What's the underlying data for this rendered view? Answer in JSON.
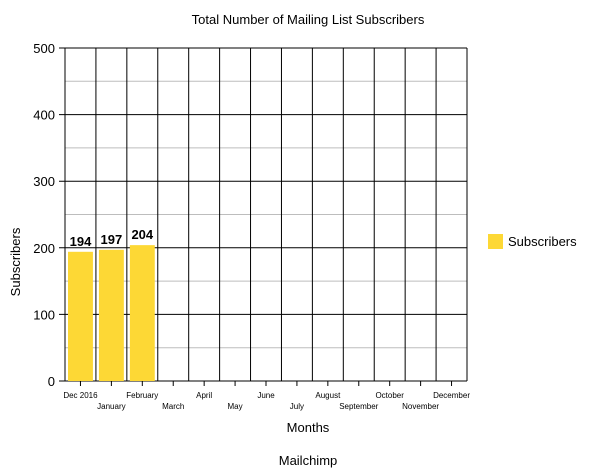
{
  "chart_data": {
    "type": "bar",
    "title": "Total Number of Mailing List Subscribers",
    "xlabel": "Months",
    "ylabel": "Subscribers",
    "source": "Mailchimp",
    "categories": [
      "Dec 2016",
      "January",
      "February",
      "March",
      "April",
      "May",
      "June",
      "July",
      "August",
      "September",
      "October",
      "November",
      "December"
    ],
    "series": [
      {
        "name": "Subscribers",
        "color": "#fdd835",
        "values": [
          194,
          197,
          204,
          null,
          null,
          null,
          null,
          null,
          null,
          null,
          null,
          null,
          null
        ]
      }
    ],
    "ylim": [
      0,
      500
    ],
    "yticks": [
      0,
      100,
      200,
      300,
      400,
      500
    ],
    "grid": true,
    "legend_position": "right"
  }
}
